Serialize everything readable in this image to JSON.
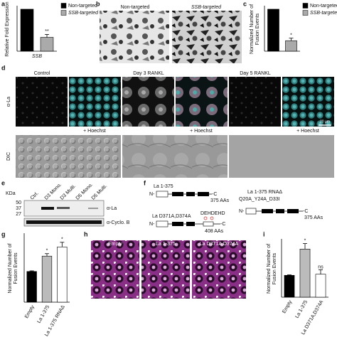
{
  "chart_data": [
    {
      "type": "bar",
      "panel": "a",
      "y_label": [
        "Relative Fold Expression"
      ],
      "x_label": "SSB",
      "categories": [
        null
      ],
      "ylim": [
        0,
        1.05
      ],
      "series": [
        {
          "name": "Non-targeted",
          "color": "#000000",
          "values": [
            1
          ]
        },
        {
          "name": "SSB-targeted",
          "color": "#aaaaaa",
          "values": [
            0.33
          ],
          "errors": [
            0.07
          ],
          "annotation": "**"
        }
      ]
    },
    {
      "type": "bar",
      "panel": "c",
      "y_label": [
        "Normalized Number of",
        "Fusion Events"
      ],
      "categories": [
        null
      ],
      "ylim": [
        0,
        1.05
      ],
      "series": [
        {
          "name": "Non-targeted",
          "color": "#000000",
          "values": [
            1
          ]
        },
        {
          "name": "SSB-targeted",
          "color": "#aaaaaa",
          "values": [
            0.25
          ],
          "errors": [
            0.06
          ],
          "annotation": "*"
        }
      ]
    },
    {
      "type": "bar",
      "panel": "g",
      "y_label": [
        "Normalized Number of",
        "Fusion Events"
      ],
      "ylim": [
        0,
        2.2
      ],
      "categories": [
        "Empty",
        "La 1-375",
        "La 1-375 RNAΔ"
      ],
      "values": [
        1,
        1.5,
        1.8
      ],
      "errors": [
        0.02,
        0.08,
        0.15
      ],
      "colors": [
        "#000000",
        "#bbbbbb",
        "#ffffff"
      ],
      "annotations": [
        null,
        "*",
        "*"
      ]
    },
    {
      "type": "bar",
      "panel": "i",
      "y_label": [
        "Normalized Number of",
        "Fusion Events"
      ],
      "ylim": [
        0,
        2.6
      ],
      "categories": [
        "Empty",
        "La 1-375",
        "La D371A,D374A"
      ],
      "values": [
        1,
        2.2,
        1.05
      ],
      "errors": [
        0.02,
        0.25,
        0.2
      ],
      "colors": [
        "#000000",
        "#bbbbbb",
        "#ffffff"
      ],
      "annotations": [
        null,
        "*",
        "ns"
      ]
    }
  ],
  "panels": {
    "b": {
      "letter": "b",
      "titles": [
        "Non-targeted",
        "SSB-targeted"
      ]
    },
    "d": {
      "letter": "d",
      "columns": [
        "Control",
        "Day 3 RANKL",
        "Day 5 RANKL"
      ],
      "rows": [
        "α-La",
        "DIC"
      ],
      "overlay": "+ Hoechst",
      "scale_bar": "20 µm"
    },
    "e": {
      "letter": "e",
      "unit": "KDa",
      "markers": [
        50,
        37,
        27
      ],
      "lanes": [
        "Ctrl.",
        "D3 Mono.",
        "D3 Multi.",
        "D5 Mono.",
        "D5 Multi."
      ],
      "antibodies": [
        "α-La",
        "α-Cyclo. B"
      ]
    },
    "f": {
      "letter": "f",
      "n_terminus": "N-",
      "c_terminus": "-C",
      "constructs": [
        {
          "name": "La 1-375",
          "length": "375 AAs"
        },
        {
          "name": "La D371A,D374A",
          "mutation": "DEHDEHD",
          "length": "408 AAs"
        },
        {
          "name": "La 1-375 RNAΔ",
          "mutation": "Q20A_Y24A_D33I",
          "length": "375 AAs"
        }
      ]
    },
    "h": {
      "letter": "h",
      "titles": [
        "Empty",
        "La 1-375",
        "La D371A,D374A"
      ]
    }
  }
}
